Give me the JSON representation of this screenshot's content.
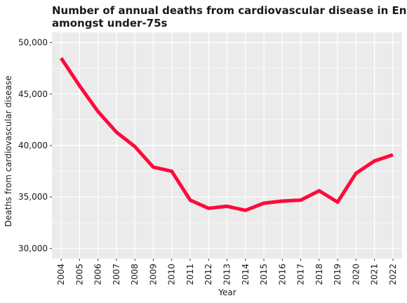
{
  "chart_data": {
    "type": "line",
    "title_lines": [
      "Number of annual deaths from cardiovascular disease in England",
      "amongst under-75s"
    ],
    "xlabel": "Year",
    "ylabel": "Deaths from cardiovascular disease",
    "x": [
      "2004",
      "2005",
      "2006",
      "2007",
      "2008",
      "2009",
      "2010",
      "2011",
      "2012",
      "2013",
      "2014",
      "2015",
      "2016",
      "2017",
      "2018",
      "2019",
      "2020",
      "2021",
      "2022"
    ],
    "series": [
      {
        "values": [
          48500,
          45800,
          43300,
          41300,
          39900,
          37900,
          37500,
          34700,
          33900,
          34100,
          33700,
          34400,
          34600,
          34700,
          35600,
          34500,
          37300,
          38500,
          39100
        ],
        "color": "#ff0a3a"
      }
    ],
    "ylim": [
      29000,
      51000
    ],
    "yticks": [
      30000,
      35000,
      40000,
      45000,
      50000
    ],
    "ytick_labels": [
      "30,000",
      "35,000",
      "40,000",
      "45,000",
      "50,000"
    ],
    "grid": true,
    "panel_background": "#ebebeb",
    "grid_color": "#ffffff"
  }
}
